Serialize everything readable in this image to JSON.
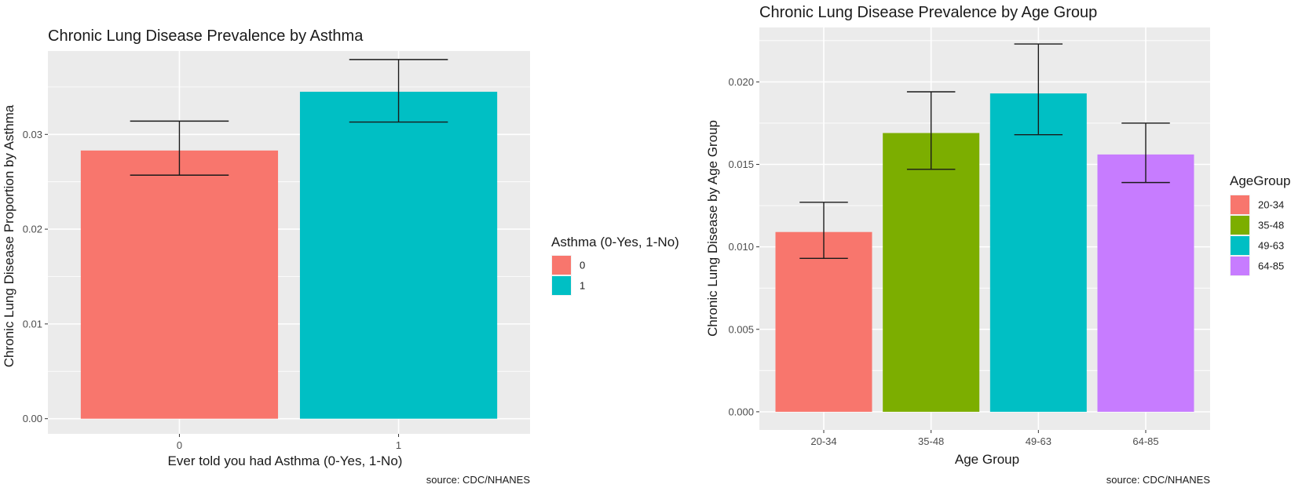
{
  "chart_data": [
    {
      "type": "bar",
      "title": "Chronic Lung Disease Prevalence by Asthma",
      "xlabel": "Ever told you had Asthma (0-Yes, 1-No)",
      "ylabel": "Chronic Lung Disease Proportion by Asthma",
      "categories": [
        "0",
        "1"
      ],
      "values": [
        0.0283,
        0.0345
      ],
      "error_low": [
        0.0257,
        0.0313
      ],
      "error_high": [
        0.0314,
        0.0379
      ],
      "ylim": [
        -0.0016,
        0.0388
      ],
      "yticks": [
        0.0,
        0.01,
        0.02,
        0.03
      ],
      "ytick_labels": [
        "0.00",
        "0.01",
        "0.02",
        "0.03"
      ],
      "colors": [
        "#F8766D",
        "#00BFC4"
      ],
      "legend": {
        "title": "Asthma (0-Yes, 1-No)",
        "placement": "right",
        "entries": [
          {
            "label": "0",
            "color": "#F8766D"
          },
          {
            "label": "1",
            "color": "#00BFC4"
          }
        ]
      },
      "caption": "source: CDC/NHANES",
      "grid": true
    },
    {
      "type": "bar",
      "title": "Chronic Lung Disease Prevalence by Age Group",
      "xlabel": "Age Group",
      "ylabel": "Chronic Lung Disease by Age Group",
      "categories": [
        "20-34",
        "35-48",
        "49-63",
        "64-85"
      ],
      "values": [
        0.0109,
        0.0169,
        0.0193,
        0.0156
      ],
      "error_low": [
        0.0093,
        0.0147,
        0.0168,
        0.0139
      ],
      "error_high": [
        0.0127,
        0.0194,
        0.0223,
        0.0175
      ],
      "ylim": [
        -0.0011,
        0.0233
      ],
      "yticks": [
        0.0,
        0.005,
        0.01,
        0.015,
        0.02
      ],
      "ytick_labels": [
        "0.000",
        "0.005",
        "0.010",
        "0.015",
        "0.020"
      ],
      "colors": [
        "#F8766D",
        "#7CAE00",
        "#00BFC4",
        "#C77CFF"
      ],
      "legend": {
        "title": "AgeGroup",
        "placement": "right",
        "entries": [
          {
            "label": "20-34",
            "color": "#F8766D"
          },
          {
            "label": "35-48",
            "color": "#7CAE00"
          },
          {
            "label": "49-63",
            "color": "#00BFC4"
          },
          {
            "label": "64-85",
            "color": "#C77CFF"
          }
        ]
      },
      "caption": "source: CDC/NHANES",
      "grid": true
    }
  ]
}
